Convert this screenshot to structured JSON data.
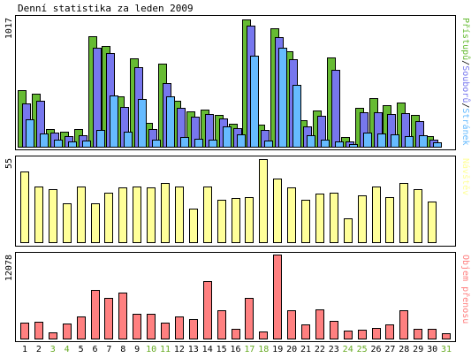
{
  "chart_data": {
    "type": "bar",
    "title": "Denní statistika za leden 2009",
    "categories": [
      "1",
      "2",
      "3",
      "4",
      "5",
      "6",
      "7",
      "8",
      "9",
      "10",
      "11",
      "12",
      "13",
      "14",
      "15",
      "16",
      "17",
      "18",
      "19",
      "20",
      "21",
      "22",
      "23",
      "24",
      "25",
      "26",
      "27",
      "28",
      "29",
      "30",
      "31"
    ],
    "weekend_days": [
      "3",
      "4",
      "10",
      "11",
      "17",
      "18",
      "24",
      "25",
      "31"
    ],
    "colors": {
      "pristupu": "#66bb33",
      "souboru": "#7777ee",
      "stranek": "#66bbff",
      "navstev": "#ffff99",
      "objem": "#ff8080",
      "weekday_label": "#000000",
      "weekend_label": "#66aa22",
      "outline": "#000000"
    },
    "panels": [
      {
        "ymax_label": "1017",
        "ymax": 1017,
        "legend": [
          {
            "key": "pristupu",
            "label": "Přístupů",
            "color": "#66bb33"
          },
          {
            "key": "souboru",
            "label": "Souborů",
            "color": "#7777ee"
          },
          {
            "key": "stranek",
            "label": "Stránek",
            "color": "#66bbff"
          }
        ],
        "series": [
          {
            "key": "pristupu",
            "color": "#66bb33",
            "values": [
              454,
              426,
              141,
              122,
              141,
              882,
              806,
              404,
              708,
              190,
              662,
              369,
              280,
              299,
              256,
              185,
              1017,
              178,
              945,
              766,
              211,
              287,
              715,
              75,
              310,
              391,
              329,
              355,
              254,
              85,
              0
            ]
          },
          {
            "key": "souboru",
            "color": "#7777ee",
            "values": [
              347,
              367,
              113,
              85,
              94,
              788,
              748,
              315,
              638,
              143,
              505,
              313,
              240,
              264,
              229,
              148,
              971,
              132,
              878,
              697,
              164,
              245,
              614,
              40,
              277,
              278,
              262,
              269,
              207,
              54,
              0
            ]
          },
          {
            "key": "stranek",
            "color": "#66bbff",
            "values": [
              217,
              109,
              56,
              40,
              52,
              135,
              410,
              122,
              381,
              56,
              405,
              77,
              66,
              54,
              160,
              96,
              727,
              47,
              793,
              493,
              94,
              54,
              40,
              19,
              111,
              103,
              101,
              82,
              89,
              38,
              0
            ]
          }
        ]
      },
      {
        "ymax_label": "55",
        "ymax": 55,
        "legend": [
          {
            "key": "navstev",
            "label": "Návštěv",
            "color": "#ffff99"
          }
        ],
        "series": [
          {
            "key": "navstev",
            "color": "#ffff99",
            "values": [
              47,
              37,
              35,
              26,
              37,
              26,
              33,
              36,
              37,
              36,
              39,
              37,
              22,
              37,
              28,
              29,
              30,
              55,
              42,
              36,
              28,
              32,
              33,
              16,
              31,
              37,
              30,
              39,
              35,
              27,
              0
            ]
          }
        ]
      },
      {
        "ymax_label": "12078",
        "ymax": 12078,
        "legend": [
          {
            "key": "objem",
            "label": "Objem přenosu",
            "color": "#ff8080"
          }
        ],
        "series": [
          {
            "key": "objem",
            "color": "#ff8080",
            "values": [
              2309,
              2439,
              830,
              2138,
              3164,
              7047,
              5869,
              6606,
              3520,
              3520,
              2234,
              3201,
              2809,
              8271,
              4109,
              1379,
              5805,
              1067,
              12078,
              4109,
              2042,
              4237,
              2557,
              1176,
              1311,
              1496,
              2042,
              4109,
              1453,
              1453,
              786
            ]
          }
        ]
      }
    ]
  }
}
